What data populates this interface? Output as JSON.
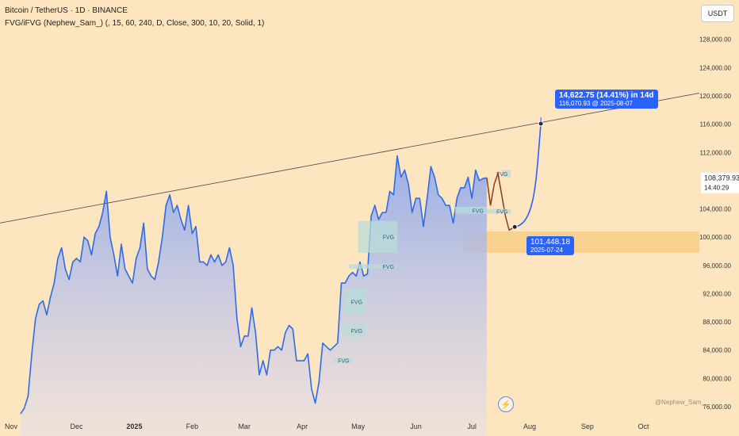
{
  "header": {
    "title": "Bitcoin / TetherUS · 1D · BINANCE",
    "indicator": "FVG/iFVG (Nephew_Sam_) (, 15, 60, 240, D, Close, 300, 10, 20, Solid, 1)"
  },
  "currency_button": "USDT",
  "watermark": "@Nephew_Sam_",
  "colors": {
    "background": "#fde6bf",
    "line": "#2f6be8",
    "accent": "#2962ff",
    "projection": "#8b3a1f",
    "zone": "#f7c97f",
    "fvg": "#b8dcd8"
  },
  "chart_data": {
    "type": "line",
    "title": "Bitcoin / TetherUS · 1D · BINANCE",
    "xlabel": "",
    "ylabel": "",
    "x_ticks": [
      "Nov",
      "Dec",
      "2025",
      "Feb",
      "Mar",
      "Apr",
      "May",
      "Jun",
      "Jul",
      "Aug",
      "Sep",
      "Oct"
    ],
    "y_ticks": [
      "76,000.00",
      "80,000.00",
      "84,000.00",
      "88,000.00",
      "92,000.00",
      "96,000.00",
      "100,000.00",
      "104,000.00",
      "112,000.00",
      "116,000.00",
      "120,000.00",
      "124,000.00",
      "128,000.00"
    ],
    "ylim": [
      75000,
      131000
    ],
    "series": [
      {
        "values": [
          [
            "2024-11-01",
            75000
          ],
          [
            "2024-11-03",
            75800
          ],
          [
            "2024-11-05",
            77500
          ],
          [
            "2024-11-07",
            83500
          ],
          [
            "2024-11-09",
            88500
          ],
          [
            "2024-11-11",
            90500
          ],
          [
            "2024-11-13",
            91000
          ],
          [
            "2024-11-15",
            89000
          ],
          [
            "2024-11-17",
            91500
          ],
          [
            "2024-11-19",
            93500
          ],
          [
            "2024-11-21",
            97000
          ],
          [
            "2024-11-23",
            98500
          ],
          [
            "2024-11-25",
            95500
          ],
          [
            "2024-11-27",
            94000
          ],
          [
            "2024-11-29",
            96500
          ],
          [
            "2024-12-01",
            97000
          ],
          [
            "2024-12-03",
            96500
          ],
          [
            "2024-12-05",
            100000
          ],
          [
            "2024-12-07",
            99500
          ],
          [
            "2024-12-09",
            97500
          ],
          [
            "2024-12-11",
            100500
          ],
          [
            "2024-12-13",
            101500
          ],
          [
            "2024-12-15",
            103500
          ],
          [
            "2024-12-17",
            106500
          ],
          [
            "2024-12-19",
            100000
          ],
          [
            "2024-12-21",
            97500
          ],
          [
            "2024-12-23",
            94500
          ],
          [
            "2024-12-25",
            99000
          ],
          [
            "2024-12-27",
            95500
          ],
          [
            "2024-12-29",
            94500
          ],
          [
            "2024-12-31",
            93500
          ],
          [
            "2025-01-02",
            97000
          ],
          [
            "2025-01-04",
            98500
          ],
          [
            "2025-01-06",
            102000
          ],
          [
            "2025-01-08",
            95500
          ],
          [
            "2025-01-10",
            94500
          ],
          [
            "2025-01-12",
            94000
          ],
          [
            "2025-01-14",
            96500
          ],
          [
            "2025-01-16",
            100000
          ],
          [
            "2025-01-18",
            104500
          ],
          [
            "2025-01-20",
            106000
          ],
          [
            "2025-01-22",
            103500
          ],
          [
            "2025-01-24",
            104500
          ],
          [
            "2025-01-26",
            102500
          ],
          [
            "2025-01-28",
            101000
          ],
          [
            "2025-01-30",
            104500
          ],
          [
            "2025-02-01",
            100500
          ],
          [
            "2025-02-03",
            101500
          ],
          [
            "2025-02-05",
            96500
          ],
          [
            "2025-02-07",
            96500
          ],
          [
            "2025-02-09",
            96000
          ],
          [
            "2025-02-11",
            97500
          ],
          [
            "2025-02-13",
            96500
          ],
          [
            "2025-02-15",
            97500
          ],
          [
            "2025-02-17",
            96000
          ],
          [
            "2025-02-19",
            96500
          ],
          [
            "2025-02-21",
            98500
          ],
          [
            "2025-02-23",
            96000
          ],
          [
            "2025-02-25",
            88500
          ],
          [
            "2025-02-27",
            84500
          ],
          [
            "2025-03-01",
            86000
          ],
          [
            "2025-03-03",
            86000
          ],
          [
            "2025-03-05",
            90000
          ],
          [
            "2025-03-07",
            86500
          ],
          [
            "2025-03-09",
            80500
          ],
          [
            "2025-03-11",
            82500
          ],
          [
            "2025-03-13",
            80500
          ],
          [
            "2025-03-15",
            84000
          ],
          [
            "2025-03-17",
            84000
          ],
          [
            "2025-03-19",
            84500
          ],
          [
            "2025-03-21",
            84000
          ],
          [
            "2025-03-23",
            86500
          ],
          [
            "2025-03-25",
            87500
          ],
          [
            "2025-03-27",
            87000
          ],
          [
            "2025-03-29",
            82500
          ],
          [
            "2025-03-31",
            82500
          ],
          [
            "2025-04-02",
            82500
          ],
          [
            "2025-04-04",
            83500
          ],
          [
            "2025-04-06",
            78500
          ],
          [
            "2025-04-08",
            76500
          ],
          [
            "2025-04-10",
            79500
          ],
          [
            "2025-04-12",
            85000
          ],
          [
            "2025-04-14",
            84500
          ],
          [
            "2025-04-16",
            84000
          ],
          [
            "2025-04-18",
            84500
          ],
          [
            "2025-04-20",
            85000
          ],
          [
            "2025-04-22",
            93500
          ],
          [
            "2025-04-24",
            93500
          ],
          [
            "2025-04-26",
            94500
          ],
          [
            "2025-04-28",
            95000
          ],
          [
            "2025-04-30",
            94500
          ],
          [
            "2025-05-02",
            96500
          ],
          [
            "2025-05-04",
            94500
          ],
          [
            "2025-05-06",
            94800
          ],
          [
            "2025-05-08",
            103000
          ],
          [
            "2025-05-10",
            104500
          ],
          [
            "2025-05-12",
            102500
          ],
          [
            "2025-05-14",
            103500
          ],
          [
            "2025-05-16",
            103500
          ],
          [
            "2025-05-18",
            106500
          ],
          [
            "2025-05-20",
            106000
          ],
          [
            "2025-05-22",
            111500
          ],
          [
            "2025-05-24",
            108500
          ],
          [
            "2025-05-26",
            109500
          ],
          [
            "2025-05-28",
            107500
          ],
          [
            "2025-05-30",
            103500
          ],
          [
            "2025-06-01",
            105500
          ],
          [
            "2025-06-03",
            105500
          ],
          [
            "2025-06-05",
            101500
          ],
          [
            "2025-06-07",
            105500
          ],
          [
            "2025-06-09",
            110000
          ],
          [
            "2025-06-11",
            108500
          ],
          [
            "2025-06-13",
            106000
          ],
          [
            "2025-06-15",
            105500
          ],
          [
            "2025-06-17",
            104500
          ],
          [
            "2025-06-19",
            104500
          ],
          [
            "2025-06-21",
            102000
          ],
          [
            "2025-06-23",
            105500
          ],
          [
            "2025-06-25",
            107000
          ],
          [
            "2025-06-27",
            107000
          ],
          [
            "2025-06-29",
            108500
          ],
          [
            "2025-07-01",
            105500
          ],
          [
            "2025-07-03",
            109500
          ],
          [
            "2025-07-05",
            108000
          ],
          [
            "2025-07-07",
            108300
          ],
          [
            "2025-07-09",
            108400
          ]
        ]
      },
      {
        "values": [
          [
            "2025-07-09",
            108400
          ],
          [
            "2025-07-11",
            104500
          ],
          [
            "2025-07-13",
            107500
          ],
          [
            "2025-07-15",
            109000
          ],
          [
            "2025-07-17",
            106000
          ],
          [
            "2025-07-19",
            103000
          ],
          [
            "2025-07-21",
            101000
          ],
          [
            "2025-07-24",
            101448.18
          ]
        ]
      },
      {
        "values": [
          [
            "2025-07-24",
            101448.18
          ],
          [
            "2025-07-28",
            103500
          ],
          [
            "2025-07-31",
            108000
          ],
          [
            "2025-08-04",
            113500
          ],
          [
            "2025-08-07",
            116070.93
          ]
        ]
      }
    ],
    "trendline": [
      [
        "2024-11-01",
        102000
      ],
      [
        "2025-10-31",
        120400
      ]
    ],
    "zone": {
      "x": [
        "2025-06-26",
        "2025-10-31"
      ],
      "y": [
        97800,
        100800
      ]
    },
    "fvg_zones": [
      {
        "label": "FVG",
        "x": [
          "2025-05-01",
          "2025-05-22"
        ],
        "y": [
          97800,
          102300
        ]
      },
      {
        "label": "FVG",
        "x": [
          "2025-04-26",
          "2025-05-22"
        ],
        "y": [
          95700,
          96200
        ]
      },
      {
        "label": "FVG",
        "x": [
          "2025-04-23",
          "2025-05-05"
        ],
        "y": [
          89000,
          92700
        ]
      },
      {
        "label": "FVG",
        "x": [
          "2025-04-23",
          "2025-05-05"
        ],
        "y": [
          85900,
          87700
        ]
      },
      {
        "label": "FVG",
        "x": [
          "2025-04-18",
          "2025-04-28"
        ],
        "y": [
          82200,
          82900
        ]
      },
      {
        "label": "FVG",
        "x": [
          "2025-06-22",
          "2025-07-09"
        ],
        "y": [
          103300,
          104300
        ]
      },
      {
        "label": "FVG",
        "x": [
          "2025-07-09",
          "2025-07-22"
        ],
        "y": [
          104000,
          104000
        ]
      },
      {
        "label": "FVG",
        "x": [
          "2025-07-17",
          "2025-07-22"
        ],
        "y": [
          108500,
          109500
        ]
      }
    ],
    "current_price": {
      "label": "108,379.93",
      "sub": "14:40:29",
      "value": 108379.93
    },
    "annotations": [
      {
        "line1": "14,622.75 (14.41%) in 14d",
        "line2": "116,070.93 @ 2025-08-07",
        "x": "2025-08-07",
        "y": 116070.93
      },
      {
        "line1": "101,448.18",
        "line2": "2025-07-24",
        "x": "2025-07-24",
        "y": 101448.18
      }
    ]
  }
}
